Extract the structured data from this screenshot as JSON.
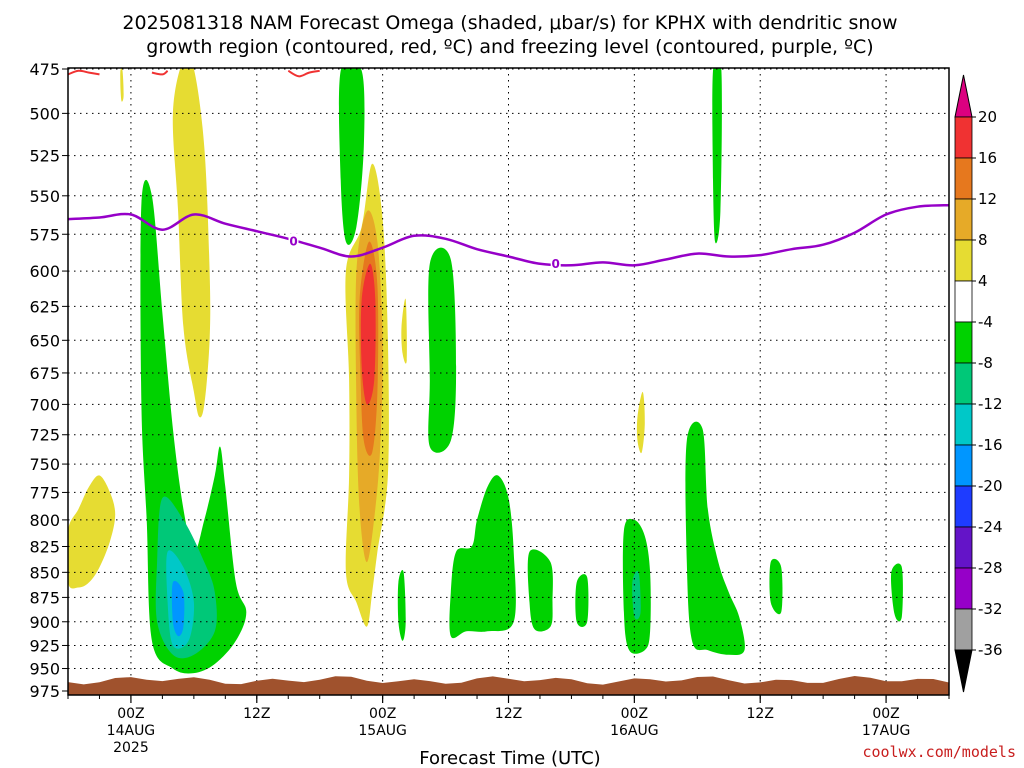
{
  "title_line1": "2025081318 NAM Forecast Omega (shaded, μbar/s) for KPHX with dendritic snow",
  "title_line2": "growth region (contoured, red, ºC) and freezing level (contoured, purple, ºC)",
  "credit": "coolwx.com/models",
  "chart_data": {
    "type": "contour",
    "title": "2025081318 NAM Forecast Omega (shaded, μbar/s) for KPHX with dendritic snow growth region (contoured, red, ºC) and freezing level (contoured, purple, ºC)",
    "xlabel": "Forecast Time (UTC)",
    "ylabel": "",
    "x_ticks": [
      {
        "label": "00Z",
        "sub1": "14AUG",
        "sub2": "2025",
        "hour": 6
      },
      {
        "label": "12Z",
        "sub1": "",
        "sub2": "",
        "hour": 18
      },
      {
        "label": "00Z",
        "sub1": "15AUG",
        "sub2": "",
        "hour": 30
      },
      {
        "label": "12Z",
        "sub1": "",
        "sub2": "",
        "hour": 42
      },
      {
        "label": "00Z",
        "sub1": "16AUG",
        "sub2": "",
        "hour": 54
      },
      {
        "label": "12Z",
        "sub1": "",
        "sub2": "",
        "hour": 66
      },
      {
        "label": "00Z",
        "sub1": "17AUG",
        "sub2": "",
        "hour": 78
      }
    ],
    "xlim": [
      0,
      84
    ],
    "y_ticks": [
      475,
      500,
      525,
      550,
      575,
      600,
      625,
      650,
      675,
      700,
      725,
      750,
      775,
      800,
      825,
      850,
      875,
      900,
      925,
      950,
      975
    ],
    "ylim": [
      475,
      975
    ],
    "y_scale": "log-pressure",
    "grid": true,
    "colorbar": {
      "labels": [
        "20",
        "16",
        "12",
        "8",
        "4",
        "-4",
        "-8",
        "-12",
        "-16",
        "-20",
        "-24",
        "-28",
        "-32",
        "-36"
      ],
      "colors": [
        "#f03232",
        "#e6781e",
        "#e6aa28",
        "#e6dc32",
        "#ffffff",
        "#00d200",
        "#00c878",
        "#00c8c8",
        "#0096ff",
        "#1e3cff",
        "#6414c8",
        "#9600c8",
        "#a0a0a0"
      ],
      "top_arrow_color": "#dc0080",
      "bottom_arrow_color": "#000000"
    },
    "freezing_level_label": "0",
    "freezing_level_color": "#9600c8",
    "freezing_level": [
      [
        0,
        565
      ],
      [
        3,
        564
      ],
      [
        6,
        562
      ],
      [
        9,
        572
      ],
      [
        12,
        562
      ],
      [
        15,
        568
      ],
      [
        18,
        573
      ],
      [
        21,
        578
      ],
      [
        24,
        584
      ],
      [
        27,
        590
      ],
      [
        30,
        584
      ],
      [
        33,
        576
      ],
      [
        36,
        578
      ],
      [
        39,
        585
      ],
      [
        42,
        590
      ],
      [
        45,
        595
      ],
      [
        48,
        596
      ],
      [
        51,
        594
      ],
      [
        54,
        596
      ],
      [
        57,
        592
      ],
      [
        60,
        588
      ],
      [
        63,
        590
      ],
      [
        66,
        589
      ],
      [
        69,
        585
      ],
      [
        72,
        582
      ],
      [
        75,
        574
      ],
      [
        78,
        562
      ],
      [
        81,
        557
      ],
      [
        84,
        556
      ]
    ],
    "dendritic_color": "#f03232",
    "dendritic_segments": [
      [
        [
          0,
          478
        ],
        [
          1,
          476
        ],
        [
          2,
          477
        ],
        [
          3,
          478
        ]
      ],
      [
        [
          8,
          477
        ],
        [
          9,
          478
        ],
        [
          9.5,
          476
        ]
      ],
      [
        [
          21,
          476
        ],
        [
          22,
          479
        ],
        [
          23,
          477
        ],
        [
          24,
          476
        ]
      ]
    ],
    "terrain_color": "#a0522d",
    "terrain_top_pressure": 965,
    "omega_regions": [
      {
        "color": "#e6dc32",
        "pts": [
          [
            0,
            810
          ],
          [
            1,
            790
          ],
          [
            2,
            770
          ],
          [
            3,
            760
          ],
          [
            4,
            775
          ],
          [
            4.5,
            795
          ],
          [
            4,
            820
          ],
          [
            3,
            845
          ],
          [
            2,
            860
          ],
          [
            1,
            865
          ],
          [
            0,
            860
          ]
        ]
      },
      {
        "color": "#e6dc32",
        "pts": [
          [
            10,
            500
          ],
          [
            11,
            470
          ],
          [
            12,
            475
          ],
          [
            13,
            520
          ],
          [
            13.5,
            600
          ],
          [
            13.5,
            650
          ],
          [
            13,
            700
          ],
          [
            12.5,
            710
          ],
          [
            12,
            690
          ],
          [
            11,
            640
          ],
          [
            10.5,
            560
          ]
        ]
      },
      {
        "color": "#e6dc32",
        "pts": [
          [
            5,
            476
          ],
          [
            5.2,
            476
          ],
          [
            5.3,
            490
          ],
          [
            5.1,
            493
          ],
          [
            5,
            485
          ]
        ]
      },
      {
        "color": "#00d200",
        "pts": [
          [
            7,
            555
          ],
          [
            8,
            550
          ],
          [
            9,
            630
          ],
          [
            10,
            720
          ],
          [
            11,
            790
          ],
          [
            12,
            830
          ],
          [
            13,
            800
          ],
          [
            14,
            760
          ],
          [
            14.5,
            735
          ],
          [
            15,
            770
          ],
          [
            16,
            860
          ],
          [
            17,
            890
          ],
          [
            16,
            920
          ],
          [
            14,
            945
          ],
          [
            12,
            955
          ],
          [
            10,
            950
          ],
          [
            8,
            920
          ],
          [
            7.5,
            800
          ],
          [
            7,
            700
          ]
        ]
      },
      {
        "color": "#00c878",
        "pts": [
          [
            9,
            780
          ],
          [
            11,
            800
          ],
          [
            13,
            840
          ],
          [
            14,
            870
          ],
          [
            14,
            910
          ],
          [
            12,
            935
          ],
          [
            10,
            935
          ],
          [
            8.5,
            900
          ],
          [
            8.5,
            840
          ]
        ]
      },
      {
        "color": "#00c8c8",
        "pts": [
          [
            9.5,
            830
          ],
          [
            11,
            845
          ],
          [
            12,
            880
          ],
          [
            11.5,
            920
          ],
          [
            10,
            925
          ],
          [
            9.5,
            880
          ]
        ]
      },
      {
        "color": "#0096ff",
        "pts": [
          [
            10,
            860
          ],
          [
            11,
            870
          ],
          [
            11,
            905
          ],
          [
            10.5,
            915
          ],
          [
            10,
            900
          ]
        ]
      },
      {
        "color": "#00d200",
        "pts": [
          [
            26,
            476
          ],
          [
            28,
            476
          ],
          [
            28.2,
            520
          ],
          [
            27.5,
            570
          ],
          [
            26.5,
            580
          ],
          [
            26,
            540
          ]
        ]
      },
      {
        "color": "#e6dc32",
        "pts": [
          [
            26.5,
            600
          ],
          [
            28,
            570
          ],
          [
            29,
            530
          ],
          [
            30,
            565
          ],
          [
            30.5,
            650
          ],
          [
            30.5,
            760
          ],
          [
            29.5,
            830
          ],
          [
            29,
            870
          ],
          [
            28.5,
            905
          ],
          [
            27.5,
            880
          ],
          [
            26.5,
            850
          ],
          [
            26.8,
            760
          ],
          [
            26.8,
            680
          ]
        ]
      },
      {
        "color": "#e6aa28",
        "pts": [
          [
            27.5,
            600
          ],
          [
            28.5,
            560
          ],
          [
            29.5,
            580
          ],
          [
            30,
            650
          ],
          [
            29.8,
            730
          ],
          [
            29.3,
            790
          ],
          [
            28.5,
            840
          ],
          [
            27.8,
            790
          ],
          [
            27.5,
            700
          ]
        ]
      },
      {
        "color": "#e6781e",
        "pts": [
          [
            27.8,
            620
          ],
          [
            28.7,
            580
          ],
          [
            29.5,
            610
          ],
          [
            29.5,
            690
          ],
          [
            29,
            740
          ],
          [
            28.2,
            730
          ],
          [
            27.9,
            680
          ]
        ]
      },
      {
        "color": "#f03232",
        "pts": [
          [
            28,
            620
          ],
          [
            28.8,
            595
          ],
          [
            29.3,
            620
          ],
          [
            29.2,
            680
          ],
          [
            28.5,
            700
          ],
          [
            28,
            670
          ]
        ]
      },
      {
        "color": "#e6dc32",
        "pts": [
          [
            31.8,
            640
          ],
          [
            32.2,
            620
          ],
          [
            32.3,
            665
          ],
          [
            31.9,
            660
          ]
        ]
      },
      {
        "color": "#00d200",
        "pts": [
          [
            34.5,
            595
          ],
          [
            36.5,
            592
          ],
          [
            37,
            670
          ],
          [
            36.5,
            730
          ],
          [
            34.5,
            735
          ],
          [
            34.5,
            680
          ]
        ]
      },
      {
        "color": "#00d200",
        "pts": [
          [
            31.5,
            860
          ],
          [
            32,
            850
          ],
          [
            32.2,
            900
          ],
          [
            31.9,
            920
          ],
          [
            31.5,
            900
          ]
        ]
      },
      {
        "color": "#00d200",
        "pts": [
          [
            37,
            830
          ],
          [
            38.5,
            825
          ],
          [
            39,
            800
          ],
          [
            40,
            770
          ],
          [
            41,
            760
          ],
          [
            42,
            780
          ],
          [
            42.5,
            830
          ],
          [
            42.5,
            900
          ],
          [
            40,
            910
          ],
          [
            38,
            910
          ],
          [
            36.5,
            915
          ],
          [
            36.5,
            870
          ]
        ]
      },
      {
        "color": "#00d200",
        "pts": [
          [
            44,
            830
          ],
          [
            46,
            840
          ],
          [
            46.2,
            880
          ],
          [
            46,
            905
          ],
          [
            44.5,
            908
          ],
          [
            44,
            880
          ]
        ]
      },
      {
        "color": "#00d200",
        "pts": [
          [
            48.5,
            860
          ],
          [
            49.5,
            855
          ],
          [
            49.5,
            900
          ],
          [
            48.5,
            900
          ]
        ]
      },
      {
        "color": "#00d200",
        "pts": [
          [
            53,
            810
          ],
          [
            54,
            800
          ],
          [
            55,
            815
          ],
          [
            55.5,
            850
          ],
          [
            55.5,
            910
          ],
          [
            55,
            930
          ],
          [
            53.5,
            930
          ],
          [
            53,
            890
          ]
        ]
      },
      {
        "color": "#00c878",
        "pts": [
          [
            53.8,
            860
          ],
          [
            54.4,
            850
          ],
          [
            54.6,
            890
          ],
          [
            54,
            895
          ]
        ]
      },
      {
        "color": "#e6dc32",
        "pts": [
          [
            54.3,
            710
          ],
          [
            54.8,
            690
          ],
          [
            55,
            715
          ],
          [
            54.7,
            740
          ],
          [
            54.3,
            730
          ]
        ]
      },
      {
        "color": "#00d200",
        "pts": [
          [
            61.5,
            476
          ],
          [
            62.3,
            476
          ],
          [
            62.2,
            560
          ],
          [
            61.7,
            580
          ],
          [
            61.5,
            540
          ]
        ]
      },
      {
        "color": "#00d200",
        "pts": [
          [
            59,
            730
          ],
          [
            60.5,
            720
          ],
          [
            61,
            790
          ],
          [
            62,
            840
          ],
          [
            63,
            870
          ],
          [
            64,
            895
          ],
          [
            64.5,
            930
          ],
          [
            63,
            935
          ],
          [
            61,
            930
          ],
          [
            59.5,
            920
          ],
          [
            59,
            840
          ]
        ]
      },
      {
        "color": "#00d200",
        "pts": [
          [
            67,
            840
          ],
          [
            68,
            845
          ],
          [
            68,
            890
          ],
          [
            67,
            880
          ]
        ]
      },
      {
        "color": "#00d200",
        "pts": [
          [
            78.5,
            850
          ],
          [
            79.5,
            845
          ],
          [
            79.5,
            895
          ],
          [
            78.8,
            892
          ]
        ]
      }
    ]
  }
}
